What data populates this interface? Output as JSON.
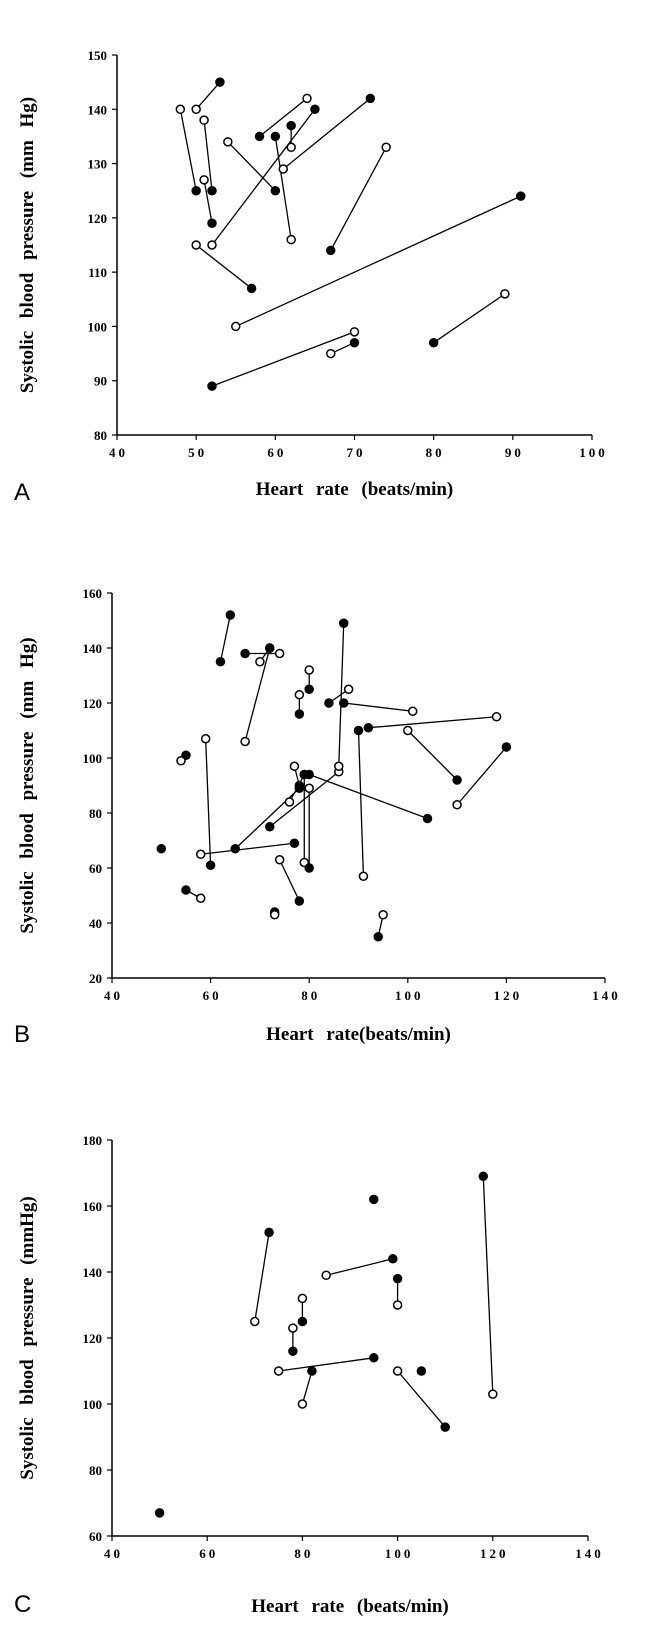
{
  "chart_data": [
    {
      "type": "scatter",
      "panel_label": "A",
      "x_label": "Heart rate (beats/min)",
      "y_label": "Systolic blood pressure (mm Hg)",
      "xlim": [
        40,
        100
      ],
      "xticks": [
        40,
        50,
        60,
        70,
        80,
        90,
        100
      ],
      "ylim": [
        80,
        150
      ],
      "yticks": [
        80,
        90,
        100,
        110,
        120,
        130,
        140,
        150
      ],
      "color": "#000",
      "series": [
        {
          "filled": [
            false,
            false,
            false,
            false,
            false,
            false,
            false,
            false,
            true,
            true,
            true,
            true,
            false,
            true,
            false,
            true
          ],
          "x": [
            48,
            50,
            51,
            54,
            51,
            50,
            52,
            61,
            58,
            60,
            62,
            67,
            55,
            52,
            67,
            80
          ],
          "y": [
            140,
            140,
            138,
            134,
            127,
            115,
            115,
            129,
            135,
            135,
            137,
            114,
            100,
            89,
            95,
            97
          ]
        },
        {
          "filled": [
            true,
            true,
            true,
            true,
            true,
            true,
            true,
            true,
            false,
            false,
            false,
            false,
            true,
            false,
            true,
            false
          ],
          "x": [
            50,
            53,
            52,
            60,
            52,
            57,
            65,
            72,
            64,
            62,
            62,
            74,
            91,
            70,
            70,
            89
          ],
          "y": [
            125,
            145,
            125,
            125,
            119,
            107,
            140,
            142,
            142,
            116,
            133,
            133,
            124,
            99,
            97,
            106
          ]
        }
      ]
    },
    {
      "type": "scatter",
      "panel_label": "B",
      "x_label": "Heart rate(beats/min)",
      "y_label": "Systolic blood pressure (mm Hg)",
      "xlim": [
        40,
        140
      ],
      "xticks": [
        40,
        60,
        80,
        100,
        120,
        140
      ],
      "ylim": [
        20,
        160
      ],
      "yticks": [
        20,
        40,
        60,
        80,
        100,
        120,
        140,
        160
      ],
      "color": "#000",
      "series": [
        {
          "filled": [
            true,
            true,
            true,
            false,
            true,
            false,
            false,
            true,
            true,
            false,
            false,
            true,
            true,
            false,
            true,
            true,
            false,
            true,
            false,
            false,
            true,
            true,
            true,
            true,
            true,
            false,
            false,
            true
          ],
          "x": [
            64,
            67,
            72,
            67,
            55,
            59,
            58,
            65,
            72,
            76,
            77,
            80,
            79,
            80,
            55,
            73,
            74,
            94,
            78,
            80,
            84,
            87,
            87,
            90,
            92,
            100,
            110,
            50
          ],
          "y": [
            152,
            138,
            140,
            106,
            101,
            107,
            65,
            67,
            75,
            84,
            97,
            94,
            94,
            89,
            52,
            44,
            63,
            35,
            123,
            132,
            120,
            120,
            149,
            110,
            111,
            110,
            83,
            67
          ]
        },
        {
          "filled": [
            true,
            false,
            false,
            true,
            false,
            true,
            true,
            true,
            false,
            true,
            true,
            true,
            false,
            true,
            false,
            false,
            true,
            false,
            true,
            true,
            false,
            false,
            false,
            false,
            false,
            true,
            true,
            null
          ],
          "x": [
            62,
            74,
            70,
            72,
            54,
            60,
            77,
            78,
            86,
            79,
            78,
            104,
            79,
            80,
            58,
            73,
            78,
            95,
            78,
            80,
            88,
            101,
            86,
            91,
            118,
            110,
            120,
            null
          ],
          "y": [
            135,
            138,
            135,
            140,
            99,
            61,
            69,
            89,
            95,
            94,
            90,
            78,
            62,
            60,
            49,
            43,
            48,
            43,
            116,
            125,
            125,
            117,
            97,
            57,
            115,
            92,
            104,
            null
          ]
        }
      ]
    },
    {
      "type": "scatter",
      "panel_label": "C",
      "x_label": "Heart rate (beats/min)",
      "y_label": "Systolic blood pressure (mmHg)",
      "xlim": [
        40,
        140
      ],
      "xticks": [
        40,
        60,
        80,
        100,
        120,
        140
      ],
      "ylim": [
        60,
        180
      ],
      "yticks": [
        60,
        80,
        100,
        120,
        140,
        160,
        180
      ],
      "color": "#000",
      "series": [
        {
          "filled": [
            false,
            false,
            false,
            false,
            false,
            false,
            false,
            true,
            true,
            true,
            true,
            true
          ],
          "x": [
            70,
            78,
            80,
            85,
            75,
            80,
            100,
            100,
            118,
            95,
            105,
            50
          ],
          "y": [
            125,
            123,
            132,
            139,
            110,
            100,
            110,
            138,
            169,
            162,
            110,
            67
          ]
        },
        {
          "filled": [
            true,
            true,
            true,
            true,
            true,
            true,
            true,
            false,
            false,
            null,
            null,
            null
          ],
          "x": [
            73,
            78,
            80,
            99,
            95,
            82,
            110,
            100,
            120,
            null,
            null,
            null
          ],
          "y": [
            152,
            116,
            125,
            144,
            114,
            110,
            93,
            130,
            103,
            null,
            null,
            null
          ]
        }
      ]
    }
  ]
}
